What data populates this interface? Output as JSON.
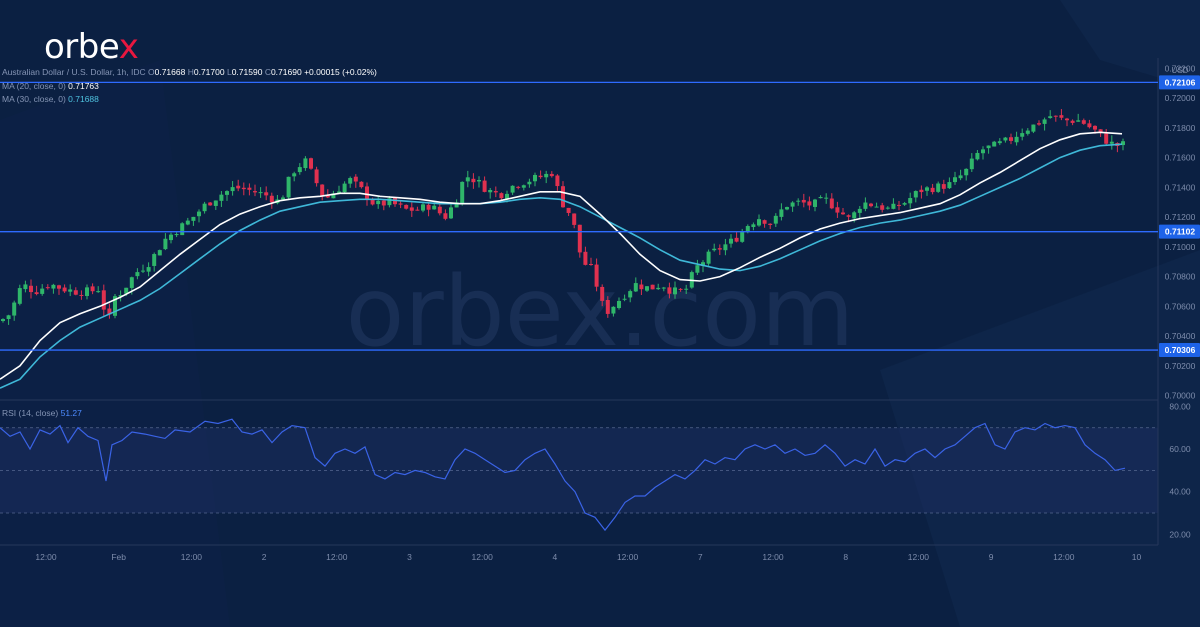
{
  "brand": {
    "name_left": "orbe",
    "name_x": "x",
    "watermark": "orbex.com"
  },
  "header": {
    "symbol": "Australian Dollar / U.S. Dollar, 1h, IDC",
    "o_label": "O",
    "o": "0.71668",
    "h_label": "H",
    "h": "0.71700",
    "l_label": "L",
    "l": "0.71590",
    "c_label": "C",
    "c": "0.71690",
    "change": "+0.00015 (+0.02%)"
  },
  "ma20": {
    "label": "MA (20, close, 0)",
    "value": "0.71763",
    "color": "#ffffff"
  },
  "ma30": {
    "label": "MA (30, close, 0)",
    "value": "0.71688",
    "color": "#3fb8d8"
  },
  "rsi_header": {
    "label": "RSI (14, close)",
    "value": "51.27"
  },
  "colors": {
    "background": "#0b2042",
    "up": "#2fb66a",
    "down": "#e0314f",
    "level_line": "#2e6bff",
    "level_tag": "#1e63e8",
    "rsi_line": "#3a63e6",
    "rsi_band": "#1b2d5e"
  },
  "chart_data": {
    "type": "candlestick",
    "title": "Australian Dollar / U.S. Dollar, 1h, IDC",
    "currency": "USD",
    "ylim": [
      0.6997,
      0.7227
    ],
    "y_ticks": [
      "0.72200",
      "0.72000",
      "0.71800",
      "0.71600",
      "0.71400",
      "0.71200",
      "0.71000",
      "0.70800",
      "0.70600",
      "0.70400",
      "0.70200",
      "0.70000"
    ],
    "horizontal_levels": [
      "0.72106",
      "0.71102",
      "0.70306"
    ],
    "x_ticks": [
      "12:00",
      "Feb",
      "12:00",
      "2",
      "12:00",
      "3",
      "12:00",
      "4",
      "12:00",
      "7",
      "12:00",
      "8",
      "12:00",
      "9",
      "12:00",
      "10"
    ],
    "price_path": [
      [
        0,
        0.705
      ],
      [
        10,
        0.7055
      ],
      [
        22,
        0.7075
      ],
      [
        35,
        0.707
      ],
      [
        50,
        0.7075
      ],
      [
        62,
        0.7072
      ],
      [
        75,
        0.707
      ],
      [
        90,
        0.707
      ],
      [
        100,
        0.7072
      ],
      [
        108,
        0.7045
      ],
      [
        112,
        0.7065
      ],
      [
        122,
        0.707
      ],
      [
        135,
        0.7082
      ],
      [
        150,
        0.709
      ],
      [
        165,
        0.7105
      ],
      [
        178,
        0.7112
      ],
      [
        190,
        0.7118
      ],
      [
        205,
        0.7128
      ],
      [
        220,
        0.7135
      ],
      [
        235,
        0.714
      ],
      [
        250,
        0.7138
      ],
      [
        265,
        0.7135
      ],
      [
        280,
        0.713
      ],
      [
        292,
        0.715
      ],
      [
        305,
        0.7158
      ],
      [
        315,
        0.7145
      ],
      [
        325,
        0.7132
      ],
      [
        340,
        0.714
      ],
      [
        350,
        0.7145
      ],
      [
        362,
        0.7138
      ],
      [
        375,
        0.7128
      ],
      [
        390,
        0.713
      ],
      [
        405,
        0.7125
      ],
      [
        418,
        0.7125
      ],
      [
        430,
        0.7128
      ],
      [
        445,
        0.712
      ],
      [
        455,
        0.713
      ],
      [
        465,
        0.7148
      ],
      [
        475,
        0.7145
      ],
      [
        488,
        0.7138
      ],
      [
        500,
        0.7135
      ],
      [
        515,
        0.7142
      ],
      [
        530,
        0.7145
      ],
      [
        545,
        0.7148
      ],
      [
        552,
        0.715
      ],
      [
        562,
        0.713
      ],
      [
        572,
        0.712
      ],
      [
        582,
        0.709
      ],
      [
        592,
        0.7085
      ],
      [
        605,
        0.7055
      ],
      [
        620,
        0.7065
      ],
      [
        635,
        0.7075
      ],
      [
        650,
        0.7072
      ],
      [
        662,
        0.7075
      ],
      [
        672,
        0.707
      ],
      [
        685,
        0.707
      ],
      [
        695,
        0.7085
      ],
      [
        710,
        0.7095
      ],
      [
        722,
        0.71
      ],
      [
        735,
        0.7105
      ],
      [
        748,
        0.7115
      ],
      [
        760,
        0.712
      ],
      [
        772,
        0.7115
      ],
      [
        785,
        0.7128
      ],
      [
        800,
        0.713
      ],
      [
        812,
        0.7128
      ],
      [
        825,
        0.7132
      ],
      [
        838,
        0.7125
      ],
      [
        850,
        0.7118
      ],
      [
        862,
        0.713
      ],
      [
        875,
        0.7128
      ],
      [
        890,
        0.7125
      ],
      [
        905,
        0.713
      ],
      [
        920,
        0.7138
      ],
      [
        935,
        0.714
      ],
      [
        950,
        0.7142
      ],
      [
        965,
        0.715
      ],
      [
        980,
        0.7165
      ],
      [
        995,
        0.7168
      ],
      [
        1010,
        0.7172
      ],
      [
        1022,
        0.7178
      ],
      [
        1035,
        0.7182
      ],
      [
        1050,
        0.7188
      ],
      [
        1065,
        0.7185
      ],
      [
        1080,
        0.7185
      ],
      [
        1095,
        0.7178
      ],
      [
        1105,
        0.7172
      ],
      [
        1115,
        0.7168
      ],
      [
        1125,
        0.7169
      ]
    ],
    "ma20_path": [
      [
        0,
        0.7011
      ],
      [
        20,
        0.702
      ],
      [
        40,
        0.7037
      ],
      [
        60,
        0.7049
      ],
      [
        80,
        0.7055
      ],
      [
        100,
        0.706
      ],
      [
        120,
        0.7066
      ],
      [
        140,
        0.7073
      ],
      [
        160,
        0.7084
      ],
      [
        180,
        0.7095
      ],
      [
        200,
        0.7105
      ],
      [
        220,
        0.7115
      ],
      [
        240,
        0.7122
      ],
      [
        260,
        0.7127
      ],
      [
        280,
        0.7131
      ],
      [
        300,
        0.7133
      ],
      [
        320,
        0.7134
      ],
      [
        340,
        0.7136
      ],
      [
        360,
        0.7136
      ],
      [
        380,
        0.7134
      ],
      [
        400,
        0.7133
      ],
      [
        420,
        0.7132
      ],
      [
        440,
        0.713
      ],
      [
        460,
        0.7129
      ],
      [
        480,
        0.7129
      ],
      [
        500,
        0.7131
      ],
      [
        520,
        0.7134
      ],
      [
        540,
        0.7137
      ],
      [
        560,
        0.7137
      ],
      [
        580,
        0.7134
      ],
      [
        600,
        0.7122
      ],
      [
        620,
        0.7109
      ],
      [
        640,
        0.7095
      ],
      [
        660,
        0.7084
      ],
      [
        680,
        0.7078
      ],
      [
        700,
        0.7077
      ],
      [
        720,
        0.708
      ],
      [
        740,
        0.7086
      ],
      [
        760,
        0.7093
      ],
      [
        780,
        0.7099
      ],
      [
        800,
        0.7106
      ],
      [
        820,
        0.7112
      ],
      [
        840,
        0.7116
      ],
      [
        860,
        0.7119
      ],
      [
        880,
        0.7121
      ],
      [
        900,
        0.7123
      ],
      [
        920,
        0.7126
      ],
      [
        940,
        0.7129
      ],
      [
        960,
        0.7135
      ],
      [
        980,
        0.7143
      ],
      [
        1000,
        0.715
      ],
      [
        1020,
        0.7158
      ],
      [
        1040,
        0.7166
      ],
      [
        1060,
        0.7172
      ],
      [
        1080,
        0.7176
      ],
      [
        1100,
        0.7177
      ],
      [
        1122,
        0.7176
      ]
    ],
    "ma30_path": [
      [
        0,
        0.7005
      ],
      [
        20,
        0.7011
      ],
      [
        40,
        0.7026
      ],
      [
        60,
        0.7037
      ],
      [
        80,
        0.7046
      ],
      [
        100,
        0.7052
      ],
      [
        120,
        0.7058
      ],
      [
        140,
        0.7064
      ],
      [
        160,
        0.7072
      ],
      [
        180,
        0.7082
      ],
      [
        200,
        0.7092
      ],
      [
        220,
        0.7102
      ],
      [
        240,
        0.7111
      ],
      [
        260,
        0.7118
      ],
      [
        280,
        0.7124
      ],
      [
        300,
        0.7127
      ],
      [
        320,
        0.713
      ],
      [
        340,
        0.7131
      ],
      [
        360,
        0.7132
      ],
      [
        380,
        0.7132
      ],
      [
        400,
        0.7131
      ],
      [
        420,
        0.713
      ],
      [
        440,
        0.7129
      ],
      [
        460,
        0.7129
      ],
      [
        480,
        0.7129
      ],
      [
        500,
        0.713
      ],
      [
        520,
        0.7132
      ],
      [
        540,
        0.7133
      ],
      [
        560,
        0.7132
      ],
      [
        580,
        0.7127
      ],
      [
        600,
        0.712
      ],
      [
        620,
        0.7113
      ],
      [
        640,
        0.7106
      ],
      [
        660,
        0.7098
      ],
      [
        680,
        0.7091
      ],
      [
        700,
        0.7088
      ],
      [
        720,
        0.7085
      ],
      [
        740,
        0.7084
      ],
      [
        760,
        0.7087
      ],
      [
        780,
        0.7092
      ],
      [
        800,
        0.7098
      ],
      [
        820,
        0.7104
      ],
      [
        840,
        0.7109
      ],
      [
        860,
        0.7113
      ],
      [
        880,
        0.7116
      ],
      [
        900,
        0.7118
      ],
      [
        920,
        0.7121
      ],
      [
        940,
        0.7124
      ],
      [
        960,
        0.7128
      ],
      [
        980,
        0.7134
      ],
      [
        1000,
        0.714
      ],
      [
        1020,
        0.7146
      ],
      [
        1040,
        0.7153
      ],
      [
        1060,
        0.716
      ],
      [
        1080,
        0.7165
      ],
      [
        1100,
        0.7168
      ],
      [
        1122,
        0.7169
      ]
    ],
    "rsi": {
      "ylim": [
        15,
        83
      ],
      "y_ticks": [
        "80.00",
        "60.00",
        "40.00",
        "20.00"
      ],
      "band": [
        30,
        70
      ],
      "midline": 50,
      "path": [
        [
          0,
          70
        ],
        [
          10,
          66
        ],
        [
          20,
          68
        ],
        [
          30,
          60
        ],
        [
          40,
          69
        ],
        [
          50,
          67
        ],
        [
          60,
          71
        ],
        [
          68,
          63
        ],
        [
          78,
          70
        ],
        [
          88,
          66
        ],
        [
          98,
          64
        ],
        [
          106,
          45
        ],
        [
          112,
          62
        ],
        [
          122,
          64
        ],
        [
          132,
          68
        ],
        [
          145,
          67
        ],
        [
          155,
          66
        ],
        [
          165,
          65
        ],
        [
          175,
          69
        ],
        [
          190,
          68
        ],
        [
          205,
          73
        ],
        [
          218,
          72
        ],
        [
          232,
          74
        ],
        [
          242,
          68
        ],
        [
          252,
          67
        ],
        [
          262,
          69
        ],
        [
          272,
          63
        ],
        [
          282,
          68
        ],
        [
          292,
          71
        ],
        [
          305,
          70
        ],
        [
          315,
          56
        ],
        [
          325,
          52
        ],
        [
          335,
          58
        ],
        [
          345,
          60
        ],
        [
          355,
          58
        ],
        [
          365,
          61
        ],
        [
          375,
          48
        ],
        [
          385,
          46
        ],
        [
          395,
          49
        ],
        [
          405,
          48
        ],
        [
          415,
          50
        ],
        [
          425,
          49
        ],
        [
          435,
          47
        ],
        [
          445,
          46
        ],
        [
          455,
          55
        ],
        [
          465,
          60
        ],
        [
          475,
          58
        ],
        [
          485,
          55
        ],
        [
          495,
          52
        ],
        [
          505,
          49
        ],
        [
          515,
          50
        ],
        [
          525,
          55
        ],
        [
          535,
          58
        ],
        [
          545,
          60
        ],
        [
          555,
          53
        ],
        [
          565,
          45
        ],
        [
          575,
          40
        ],
        [
          585,
          30
        ],
        [
          595,
          28
        ],
        [
          605,
          22
        ],
        [
          615,
          28
        ],
        [
          625,
          35
        ],
        [
          635,
          38
        ],
        [
          645,
          38
        ],
        [
          655,
          42
        ],
        [
          665,
          45
        ],
        [
          675,
          48
        ],
        [
          685,
          46
        ],
        [
          695,
          50
        ],
        [
          705,
          55
        ],
        [
          715,
          53
        ],
        [
          725,
          56
        ],
        [
          735,
          55
        ],
        [
          745,
          60
        ],
        [
          755,
          62
        ],
        [
          765,
          60
        ],
        [
          775,
          62
        ],
        [
          785,
          58
        ],
        [
          795,
          60
        ],
        [
          805,
          57
        ],
        [
          815,
          58
        ],
        [
          825,
          62
        ],
        [
          835,
          58
        ],
        [
          845,
          52
        ],
        [
          855,
          55
        ],
        [
          865,
          53
        ],
        [
          875,
          60
        ],
        [
          885,
          52
        ],
        [
          895,
          55
        ],
        [
          905,
          54
        ],
        [
          915,
          58
        ],
        [
          925,
          60
        ],
        [
          935,
          56
        ],
        [
          945,
          60
        ],
        [
          955,
          62
        ],
        [
          965,
          66
        ],
        [
          975,
          70
        ],
        [
          985,
          72
        ],
        [
          995,
          62
        ],
        [
          1005,
          60
        ],
        [
          1015,
          68
        ],
        [
          1025,
          70
        ],
        [
          1035,
          69
        ],
        [
          1045,
          72
        ],
        [
          1055,
          70
        ],
        [
          1065,
          71
        ],
        [
          1075,
          70
        ],
        [
          1085,
          62
        ],
        [
          1095,
          58
        ],
        [
          1105,
          55
        ],
        [
          1115,
          50
        ],
        [
          1125,
          51
        ]
      ]
    }
  }
}
